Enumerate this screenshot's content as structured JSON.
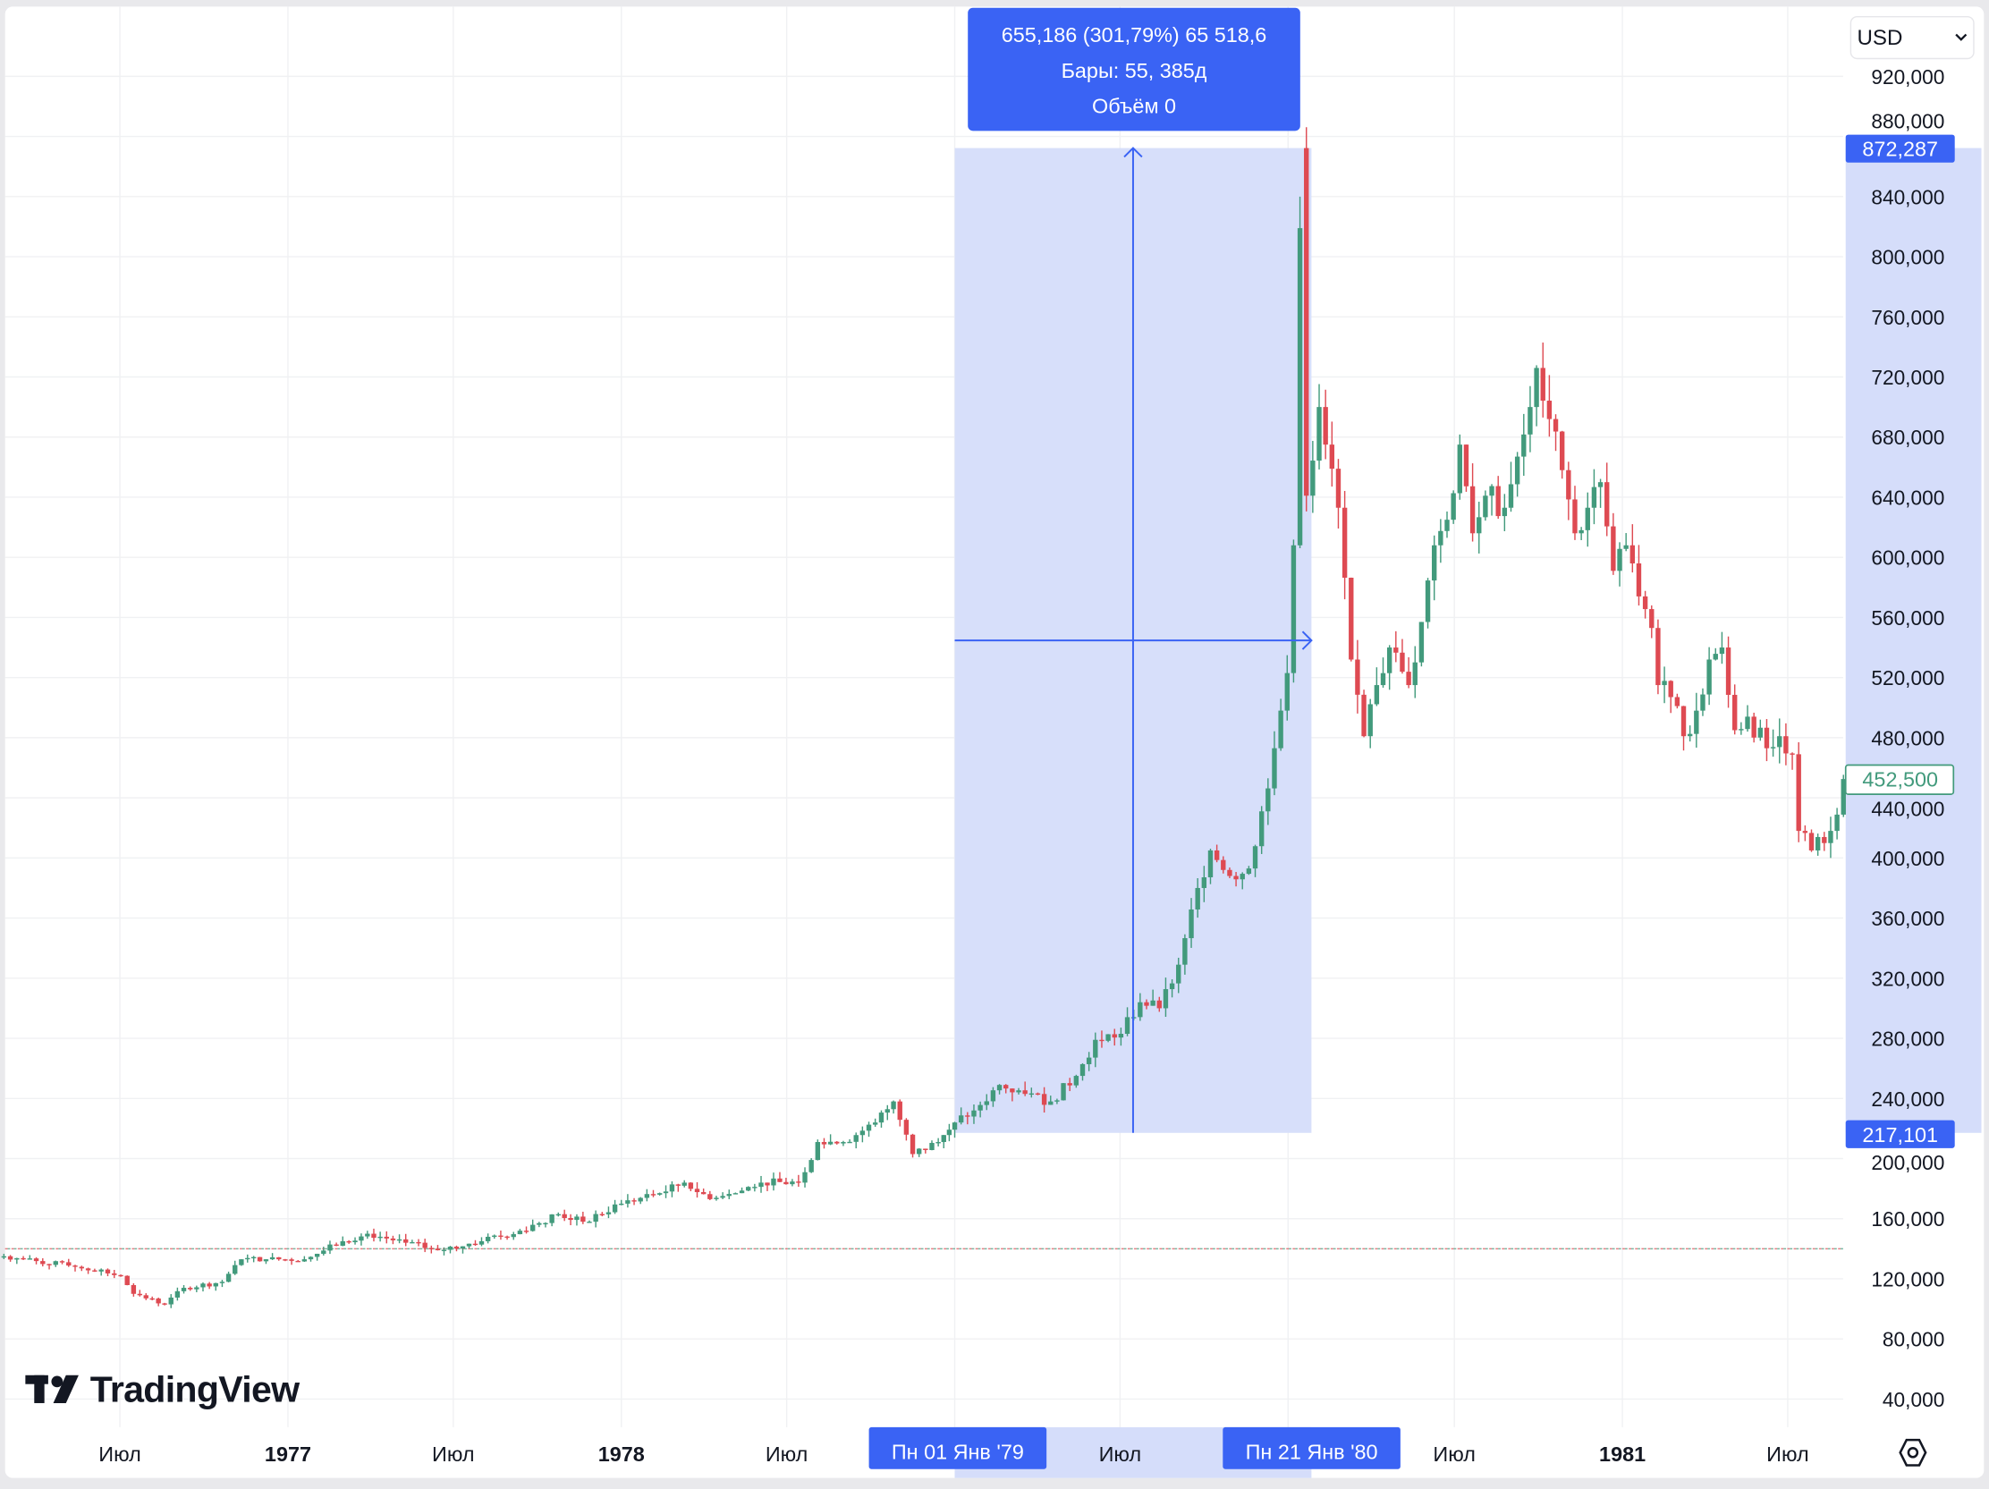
{
  "currency_select": {
    "value": "USD"
  },
  "logo": {
    "text": "TradingView"
  },
  "measure_tooltip": {
    "line1": "655,186 (301,79%) 65 518,6",
    "line2": "Бары: 55, 385д",
    "line3": "Объём 0"
  },
  "price_labels": {
    "range_high": "872,287",
    "range_low": "217,101",
    "last_price": "452,500"
  },
  "time_labels": {
    "range_start": "Пн 01 Янв '79",
    "range_end": "Пн 21 Янв '80"
  },
  "colors": {
    "up": "#429a7c",
    "down": "#de4a52",
    "measure_accent": "#3a63f4",
    "measure_fill": "#d5ddfa",
    "last_price": "#429a7c"
  },
  "icons": {
    "settings": "hexagon-gear-icon",
    "select": "chevron-down-icon"
  },
  "chart_data": {
    "type": "candlestick",
    "interval": "weekly",
    "grid": true,
    "ylim": [
      40000,
      920000
    ],
    "xlim": [
      "1976-02-25",
      "1981-09-05"
    ],
    "y_ticks": [
      "920,000",
      "880,000",
      "840,000",
      "800,000",
      "760,000",
      "720,000",
      "680,000",
      "640,000",
      "600,000",
      "560,000",
      "520,000",
      "480,000",
      "440,000",
      "400,000",
      "360,000",
      "320,000",
      "280,000",
      "240,000",
      "200,000",
      "160,000",
      "120,000",
      "80,000",
      "40,000"
    ],
    "y_tick_values": [
      920000,
      880000,
      840000,
      800000,
      760000,
      720000,
      680000,
      640000,
      600000,
      560000,
      520000,
      480000,
      440000,
      400000,
      360000,
      320000,
      280000,
      240000,
      200000,
      160000,
      120000,
      80000,
      40000
    ],
    "x_ticks": [
      {
        "label": "Июл",
        "date": "1976-07-01",
        "year": false
      },
      {
        "label": "1977",
        "date": "1977-01-01",
        "year": true
      },
      {
        "label": "Июл",
        "date": "1977-07-01",
        "year": false
      },
      {
        "label": "1978",
        "date": "1978-01-01",
        "year": true
      },
      {
        "label": "Июл",
        "date": "1978-07-01",
        "year": false
      },
      {
        "label": "Июл",
        "date": "1979-07-01",
        "year": false
      },
      {
        "label": "Июл",
        "date": "1980-07-01",
        "year": false
      },
      {
        "label": "1981",
        "date": "1981-01-01",
        "year": true
      },
      {
        "label": "Июл",
        "date": "1981-07-01",
        "year": false
      }
    ],
    "grid_dates": [
      "1976-07-01",
      "1977-01-01",
      "1977-07-01",
      "1978-01-01",
      "1978-07-01",
      "1979-01-01",
      "1979-07-01",
      "1980-01-01",
      "1980-07-01",
      "1981-01-01",
      "1981-07-01"
    ],
    "previous_close_line": 140000,
    "measurement": {
      "from_date": "1979-01-01",
      "to_date": "1980-01-21",
      "low": 217101,
      "high": 872287,
      "change": 655186,
      "change_pct": 301.79,
      "bars": 55,
      "days": 385
    },
    "last_price": 452500,
    "closes": [
      [
        "1976-02-25",
        135000
      ],
      [
        "1976-05-13",
        128000
      ],
      [
        "1976-07-02",
        122000
      ],
      [
        "1976-07-16",
        110000
      ],
      [
        "1976-08-19",
        103000
      ],
      [
        "1976-09-09",
        114000
      ],
      [
        "1976-10-21",
        118000
      ],
      [
        "1976-11-11",
        133000
      ],
      [
        "1976-12-08",
        133000
      ],
      [
        "1977-01-19",
        133000
      ],
      [
        "1977-03-02",
        145000
      ],
      [
        "1977-03-29",
        150000
      ],
      [
        "1977-05-10",
        144000
      ],
      [
        "1977-06-14",
        139000
      ],
      [
        "1977-08-01",
        145000
      ],
      [
        "1977-09-12",
        152000
      ],
      [
        "1977-10-24",
        163000
      ],
      [
        "1977-11-20",
        158000
      ],
      [
        "1978-01-01",
        170000
      ],
      [
        "1978-02-12",
        177000
      ],
      [
        "1978-03-11",
        184000
      ],
      [
        "1978-04-08",
        173000
      ],
      [
        "1978-05-06",
        177000
      ],
      [
        "1978-06-03",
        184000
      ],
      [
        "1978-07-14",
        184000
      ],
      [
        "1978-08-04",
        211000
      ],
      [
        "1978-09-01",
        211000
      ],
      [
        "1978-10-06",
        224000
      ],
      [
        "1978-10-26",
        238000
      ],
      [
        "1978-11-16",
        203000
      ],
      [
        "1978-12-14",
        211000
      ],
      [
        "1979-01-01",
        224000
      ],
      [
        "1979-01-22",
        232000
      ],
      [
        "1979-02-19",
        249000
      ],
      [
        "1979-03-19",
        243000
      ],
      [
        "1979-04-16",
        238000
      ],
      [
        "1979-05-14",
        255000
      ],
      [
        "1979-06-04",
        279000
      ],
      [
        "1979-07-02",
        283000
      ],
      [
        "1979-07-23",
        304000
      ],
      [
        "1979-08-13",
        300000
      ],
      [
        "1979-09-03",
        329000
      ],
      [
        "1979-09-24",
        380000
      ],
      [
        "1979-10-08",
        405000
      ],
      [
        "1979-10-29",
        388000
      ],
      [
        "1979-11-19",
        393000
      ],
      [
        "1979-12-03",
        431000
      ],
      [
        "1979-12-17",
        473000
      ],
      [
        "1979-12-31",
        523000
      ],
      [
        "1980-01-07",
        608000
      ],
      [
        "1980-01-14",
        819000
      ],
      [
        "1980-01-21",
        641000
      ],
      [
        "1980-02-04",
        700000
      ],
      [
        "1980-02-11",
        675000
      ],
      [
        "1980-02-25",
        633000
      ],
      [
        "1980-03-10",
        532000
      ],
      [
        "1980-03-24",
        481000
      ],
      [
        "1980-04-07",
        515000
      ],
      [
        "1980-04-21",
        540000
      ],
      [
        "1980-05-12",
        515000
      ],
      [
        "1980-05-26",
        557000
      ],
      [
        "1980-06-09",
        608000
      ],
      [
        "1980-06-23",
        625000
      ],
      [
        "1980-07-07",
        675000
      ],
      [
        "1980-07-21",
        616000
      ],
      [
        "1980-08-04",
        641000
      ],
      [
        "1980-08-25",
        633000
      ],
      [
        "1980-09-08",
        667000
      ],
      [
        "1980-09-22",
        700000
      ],
      [
        "1980-09-29",
        726000
      ],
      [
        "1980-10-13",
        692000
      ],
      [
        "1980-10-27",
        658000
      ],
      [
        "1980-11-10",
        616000
      ],
      [
        "1980-11-24",
        633000
      ],
      [
        "1980-12-08",
        650000
      ],
      [
        "1980-12-22",
        591000
      ],
      [
        "1981-01-05",
        608000
      ],
      [
        "1981-01-19",
        574000
      ],
      [
        "1981-02-02",
        553000
      ],
      [
        "1981-02-09",
        515000
      ],
      [
        "1981-02-23",
        507000
      ],
      [
        "1981-03-09",
        481000
      ],
      [
        "1981-03-23",
        498000
      ],
      [
        "1981-04-06",
        532000
      ],
      [
        "1981-04-20",
        540000
      ],
      [
        "1981-05-04",
        485000
      ],
      [
        "1981-05-18",
        494000
      ],
      [
        "1981-06-08",
        473000
      ],
      [
        "1981-06-22",
        481000
      ],
      [
        "1981-07-06",
        469000
      ],
      [
        "1981-07-13",
        418000
      ],
      [
        "1981-07-27",
        405000
      ],
      [
        "1981-08-17",
        418000
      ],
      [
        "1981-08-31",
        452500
      ]
    ],
    "highs_override": {
      "1980-01-14": 840000,
      "1980-01-21": 872287
    }
  }
}
